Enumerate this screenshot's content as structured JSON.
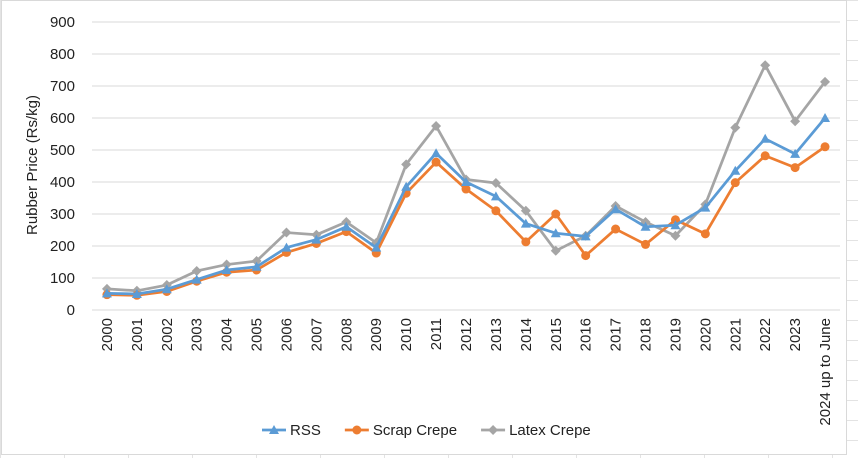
{
  "chart_data": {
    "type": "line",
    "ylabel": "Rubber Price (Rs/kg)",
    "xlabel": "",
    "ylim": [
      0,
      900
    ],
    "yticks": [
      0,
      100,
      200,
      300,
      400,
      500,
      600,
      700,
      800,
      900
    ],
    "grid": "horizontal",
    "legend_position": "bottom",
    "categories": [
      "2000",
      "2001",
      "2002",
      "2003",
      "2004",
      "2005",
      "2006",
      "2007",
      "2008",
      "2009",
      "2010",
      "2011",
      "2012",
      "2013",
      "2014",
      "2015",
      "2016",
      "2017",
      "2018",
      "2019",
      "2020",
      "2021",
      "2022",
      "2023",
      "2024 up to June"
    ],
    "series": [
      {
        "name": "RSS",
        "color": "#5b9bd5",
        "marker": "triangle",
        "values": [
          52,
          50,
          65,
          95,
          125,
          135,
          195,
          220,
          260,
          195,
          385,
          490,
          400,
          355,
          270,
          240,
          230,
          315,
          260,
          265,
          320,
          435,
          535,
          488,
          600
        ]
      },
      {
        "name": "Scrap Crepe",
        "color": "#ed7d31",
        "marker": "circle",
        "values": [
          48,
          46,
          58,
          90,
          118,
          125,
          180,
          208,
          245,
          178,
          365,
          462,
          378,
          310,
          213,
          300,
          170,
          253,
          205,
          282,
          238,
          398,
          482,
          445,
          510
        ]
      },
      {
        "name": "Latex Crepe",
        "color": "#a5a5a5",
        "marker": "diamond",
        "values": [
          66,
          60,
          78,
          122,
          142,
          153,
          242,
          235,
          275,
          210,
          455,
          575,
          408,
          397,
          310,
          185,
          232,
          325,
          275,
          232,
          330,
          570,
          765,
          590,
          713
        ]
      }
    ]
  }
}
